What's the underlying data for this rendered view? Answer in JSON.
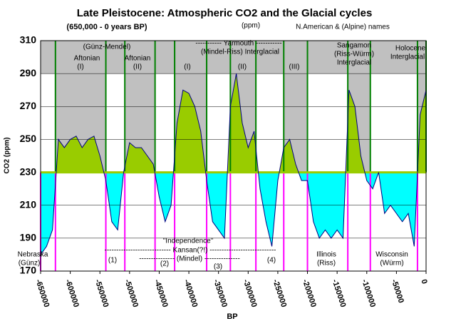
{
  "chart_data": {
    "type": "line",
    "title": "Late Pleistocene: Atmospheric CO2 and the Glacial cycles",
    "subtitle": "(650,000 - 0 years BP)",
    "unit_note": "(ppm)",
    "names_note": "N.American & (Alpine) names",
    "x_label": "BP",
    "y_label": "CO2 (ppm)",
    "xlim": [
      -650000,
      0
    ],
    "ylim": [
      170,
      310
    ],
    "xticks": [
      -650000,
      -600000,
      -550000,
      -500000,
      -450000,
      -400000,
      -350000,
      -300000,
      -250000,
      -200000,
      -150000,
      -100000,
      -50000,
      0
    ],
    "yticks": [
      170,
      190,
      210,
      230,
      250,
      270,
      290,
      310
    ],
    "threshold": 230,
    "interglacials": [
      [
        -625000,
        -540000
      ],
      [
        -508000,
        -457000
      ],
      [
        -424000,
        -370000
      ],
      [
        -330000,
        -287000
      ],
      [
        -240000,
        -200000
      ],
      [
        -132000,
        -94000
      ],
      [
        -14500,
        0
      ]
    ],
    "glacials": [
      [
        -650000,
        -625000
      ],
      [
        -540000,
        -508000
      ],
      [
        -457000,
        -424000
      ],
      [
        -370000,
        -330000
      ],
      [
        -287000,
        -240000
      ],
      [
        -200000,
        -132000
      ],
      [
        -94000,
        -14500
      ]
    ],
    "series": [
      {
        "name": "CO2",
        "color": "#000080",
        "x": [
          -650000,
          -640000,
          -630000,
          -620000,
          -610000,
          -600000,
          -590000,
          -580000,
          -570000,
          -560000,
          -550000,
          -540000,
          -530000,
          -520000,
          -510000,
          -500000,
          -490000,
          -480000,
          -470000,
          -460000,
          -450000,
          -440000,
          -430000,
          -420000,
          -410000,
          -400000,
          -390000,
          -380000,
          -370000,
          -360000,
          -350000,
          -340000,
          -330000,
          -320000,
          -310000,
          -300000,
          -290000,
          -280000,
          -270000,
          -260000,
          -250000,
          -240000,
          -230000,
          -220000,
          -210000,
          -200000,
          -190000,
          -180000,
          -170000,
          -160000,
          -150000,
          -140000,
          -130000,
          -120000,
          -110000,
          -100000,
          -90000,
          -80000,
          -70000,
          -60000,
          -50000,
          -40000,
          -30000,
          -20000,
          -10000,
          0
        ],
        "values": [
          180,
          185,
          195,
          250,
          245,
          250,
          252,
          245,
          250,
          252,
          240,
          225,
          200,
          195,
          230,
          248,
          245,
          245,
          240,
          235,
          215,
          200,
          210,
          260,
          280,
          278,
          270,
          255,
          225,
          200,
          195,
          190,
          270,
          290,
          260,
          245,
          255,
          220,
          200,
          185,
          225,
          245,
          250,
          235,
          225,
          225,
          200,
          190,
          195,
          190,
          195,
          190,
          280,
          270,
          240,
          225,
          220,
          230,
          205,
          210,
          205,
          200,
          205,
          185,
          265,
          280
        ]
      }
    ],
    "annotations": [
      "(Günz-Mendel)",
      "Aftonian",
      "(I)",
      "Aftonian",
      "(II)",
      "(I)",
      "----------- Yarmouth -----------",
      "(Mindel-Riss) Interglacial",
      "(II)",
      "(III)",
      "Sangamon",
      "(Riss-Würm)",
      "Interglacial",
      "Holocene",
      "Interglacial",
      "Nebraska",
      "(Günz)",
      "\"Independence\"",
      "---------------------------- Kansan(?!) ----------------------------",
      "(1)",
      "--------------- (Mindel) ---------------",
      "(2)",
      "(3)",
      "(4)",
      "Illinois",
      "(Riss)",
      "Wisconsin",
      "(Würm)"
    ]
  }
}
